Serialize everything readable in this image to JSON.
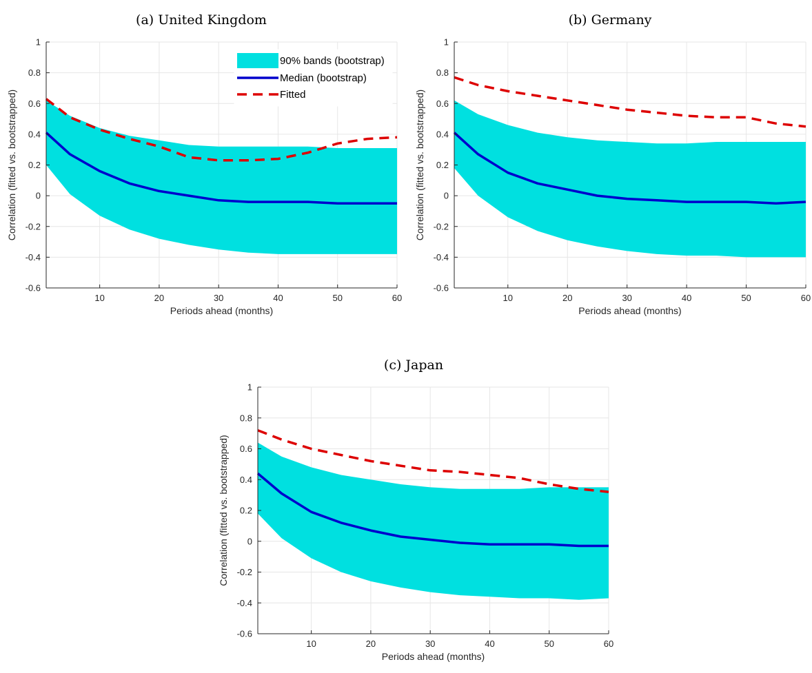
{
  "chart_data": [
    {
      "type": "area",
      "title": "(a) United Kingdom",
      "xlabel": "Periods ahead (months)",
      "ylabel": "Correlation (fitted vs. bootstrapped)",
      "xlim": [
        1,
        60
      ],
      "ylim": [
        -0.6,
        1
      ],
      "xticks": [
        10,
        20,
        30,
        40,
        50,
        60
      ],
      "yticks": [
        -0.6,
        -0.4,
        -0.2,
        0,
        0.2,
        0.4,
        0.6,
        0.8,
        1
      ],
      "grid": true,
      "legend": {
        "placement": "top-right",
        "entries": [
          "90% bands (bootstrap)",
          "Median (bootstrap)",
          "Fitted"
        ]
      },
      "x": [
        1,
        5,
        10,
        15,
        20,
        25,
        30,
        35,
        40,
        45,
        50,
        55,
        60
      ],
      "series": [
        {
          "name": "90% bands (bootstrap)",
          "kind": "band",
          "upper": [
            0.62,
            0.52,
            0.44,
            0.39,
            0.36,
            0.33,
            0.32,
            0.32,
            0.32,
            0.32,
            0.31,
            0.31,
            0.31
          ],
          "lower": [
            0.2,
            0.01,
            -0.13,
            -0.22,
            -0.28,
            -0.32,
            -0.35,
            -0.37,
            -0.38,
            -0.38,
            -0.38,
            -0.38,
            -0.38
          ]
        },
        {
          "name": "Median (bootstrap)",
          "kind": "line",
          "values": [
            0.41,
            0.27,
            0.16,
            0.08,
            0.03,
            0.0,
            -0.03,
            -0.04,
            -0.04,
            -0.04,
            -0.05,
            -0.05,
            -0.05
          ]
        },
        {
          "name": "Fitted",
          "kind": "dashed",
          "values": [
            0.63,
            0.51,
            0.43,
            0.37,
            0.32,
            0.25,
            0.23,
            0.23,
            0.24,
            0.28,
            0.34,
            0.37,
            0.38
          ]
        }
      ]
    },
    {
      "type": "area",
      "title": "(b) Germany",
      "xlabel": "Periods ahead (months)",
      "ylabel": "Correlation (fitted vs. bootstrapped)",
      "xlim": [
        1,
        60
      ],
      "ylim": [
        -0.6,
        1
      ],
      "xticks": [
        10,
        20,
        30,
        40,
        50,
        60
      ],
      "yticks": [
        -0.6,
        -0.4,
        -0.2,
        0,
        0.2,
        0.4,
        0.6,
        0.8,
        1
      ],
      "grid": true,
      "x": [
        1,
        5,
        10,
        15,
        20,
        25,
        30,
        35,
        40,
        45,
        50,
        55,
        60
      ],
      "series": [
        {
          "name": "90% bands (bootstrap)",
          "kind": "band",
          "upper": [
            0.62,
            0.53,
            0.46,
            0.41,
            0.38,
            0.36,
            0.35,
            0.34,
            0.34,
            0.35,
            0.35,
            0.35,
            0.35
          ],
          "lower": [
            0.18,
            0.0,
            -0.14,
            -0.23,
            -0.29,
            -0.33,
            -0.36,
            -0.38,
            -0.39,
            -0.39,
            -0.4,
            -0.4,
            -0.4
          ]
        },
        {
          "name": "Median (bootstrap)",
          "kind": "line",
          "values": [
            0.41,
            0.27,
            0.15,
            0.08,
            0.04,
            0.0,
            -0.02,
            -0.03,
            -0.04,
            -0.04,
            -0.04,
            -0.05,
            -0.04
          ]
        },
        {
          "name": "Fitted",
          "kind": "dashed",
          "values": [
            0.77,
            0.72,
            0.68,
            0.65,
            0.62,
            0.59,
            0.56,
            0.54,
            0.52,
            0.51,
            0.51,
            0.47,
            0.45
          ]
        }
      ]
    },
    {
      "type": "area",
      "title": "(c) Japan",
      "xlabel": "Periods ahead (months)",
      "ylabel": "Correlation (fitted vs. bootstrapped)",
      "xlim": [
        1,
        60
      ],
      "ylim": [
        -0.6,
        1
      ],
      "xticks": [
        10,
        20,
        30,
        40,
        50,
        60
      ],
      "yticks": [
        -0.6,
        -0.4,
        -0.2,
        0,
        0.2,
        0.4,
        0.6,
        0.8,
        1
      ],
      "grid": true,
      "x": [
        1,
        5,
        10,
        15,
        20,
        25,
        30,
        35,
        40,
        45,
        50,
        55,
        60
      ],
      "series": [
        {
          "name": "90% bands (bootstrap)",
          "kind": "band",
          "upper": [
            0.64,
            0.55,
            0.48,
            0.43,
            0.4,
            0.37,
            0.35,
            0.34,
            0.34,
            0.34,
            0.35,
            0.35,
            0.35
          ],
          "lower": [
            0.18,
            0.02,
            -0.11,
            -0.2,
            -0.26,
            -0.3,
            -0.33,
            -0.35,
            -0.36,
            -0.37,
            -0.37,
            -0.38,
            -0.37
          ]
        },
        {
          "name": "Median (bootstrap)",
          "kind": "line",
          "values": [
            0.44,
            0.31,
            0.19,
            0.12,
            0.07,
            0.03,
            0.01,
            -0.01,
            -0.02,
            -0.02,
            -0.02,
            -0.03,
            -0.03
          ]
        },
        {
          "name": "Fitted",
          "kind": "dashed",
          "values": [
            0.72,
            0.66,
            0.6,
            0.56,
            0.52,
            0.49,
            0.46,
            0.45,
            0.43,
            0.41,
            0.37,
            0.34,
            0.32
          ]
        }
      ]
    }
  ],
  "colors": {
    "band": "#00e0e0",
    "median": "#0000cc",
    "fitted": "#dd0000",
    "grid": "#e6e6e6",
    "axis": "#262626"
  }
}
